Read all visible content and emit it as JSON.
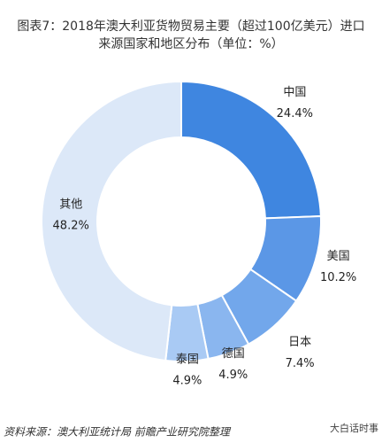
{
  "chart_data": {
    "type": "donut",
    "title": "图表7：2018年澳大利亚货物贸易主要（超过100亿美元）进口来源国家和地区分布（单位：%）",
    "categories": [
      "中国",
      "美国",
      "日本",
      "德国",
      "泰国",
      "其他"
    ],
    "values": [
      24.4,
      10.2,
      7.4,
      4.9,
      4.9,
      48.2
    ],
    "value_labels": [
      "24.4%",
      "10.2%",
      "7.4%",
      "4.9%",
      "4.9%",
      "48.2%"
    ],
    "colors": [
      "#3f86e0",
      "#5b97e6",
      "#72a7eb",
      "#8ab6ef",
      "#a9caf4",
      "#dce8f8"
    ],
    "source": "资料来源：澳大利亚统计局 前瞻产业研究院整理",
    "watermark": "大白话时事"
  }
}
